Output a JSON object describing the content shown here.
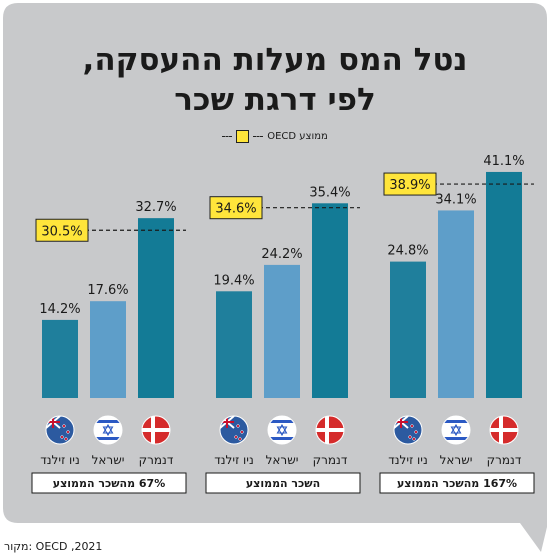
{
  "title_lines": [
    "נטל המס מעלות ההעסקה,",
    "לפי דרגת שכר"
  ],
  "legend": {
    "label": "ממוצע OECD"
  },
  "source": "מקור: OECD ,2021",
  "colors": {
    "background_panel": "#c8c9cb",
    "bar_new_zealand": "#1f7f9c",
    "bar_israel": "#5e9ec9",
    "bar_denmark": "#137b96",
    "average_box": "#ffe53b"
  },
  "chart_data": {
    "type": "bar",
    "title": "נטל המס מעלות ההעסקה, לפי דרגת שכר",
    "categories": [
      "67% מהשכר הממוצע",
      "השכר הממוצע",
      "167% מהשכר הממוצע"
    ],
    "countries": [
      "ניו זילנד",
      "ישראל",
      "דנמרק"
    ],
    "series": [
      {
        "name": "ניו זילנד",
        "values": [
          14.2,
          19.4,
          24.8
        ]
      },
      {
        "name": "ישראל",
        "values": [
          17.6,
          24.2,
          34.1
        ]
      },
      {
        "name": "דנמרק",
        "values": [
          32.7,
          35.4,
          41.1
        ]
      }
    ],
    "oecd_average": {
      "name": "ממוצע OECD",
      "values": [
        30.5,
        34.6,
        38.9
      ]
    },
    "value_labels": [
      [
        "14.2%",
        "17.6%",
        "32.7%"
      ],
      [
        "19.4%",
        "24.2%",
        "35.4%"
      ],
      [
        "24.8%",
        "34.1%",
        "41.1%"
      ]
    ],
    "average_labels": [
      "30.5%",
      "34.6%",
      "38.9%"
    ],
    "ylim": [
      0,
      45
    ],
    "grid": false,
    "legend_position": "top-center"
  }
}
